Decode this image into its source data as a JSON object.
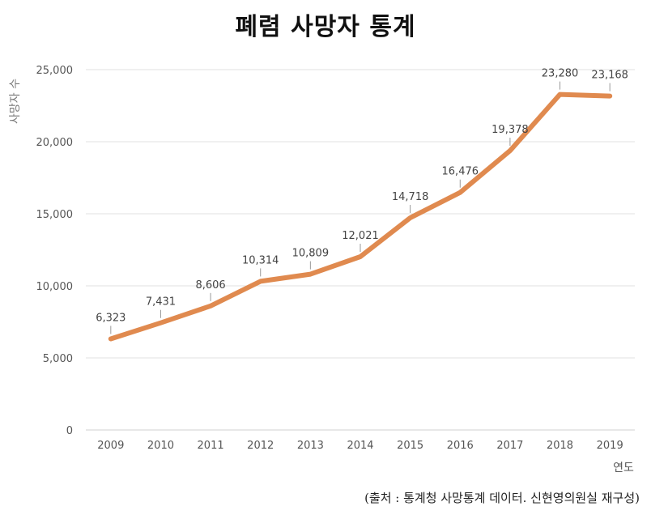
{
  "chart_data": {
    "type": "line",
    "title": "폐렴 사망자 통계",
    "xlabel": "연도",
    "ylabel": "사망자 수",
    "categories": [
      "2009",
      "2010",
      "2011",
      "2012",
      "2013",
      "2014",
      "2015",
      "2016",
      "2017",
      "2018",
      "2019"
    ],
    "series": [
      {
        "values": [
          6323,
          7431,
          8606,
          10314,
          10809,
          12021,
          14718,
          16476,
          19378,
          23280,
          23168
        ]
      }
    ],
    "data_labels": [
      "6,323",
      "7,431",
      "8,606",
      "10,314",
      "10,809",
      "12,021",
      "14,718",
      "16,476",
      "19,378",
      "23,280",
      "23,168"
    ],
    "ylim": [
      0,
      25000
    ],
    "yticks": [
      0,
      5000,
      10000,
      15000,
      20000,
      25000
    ],
    "ytick_labels": [
      "0",
      "5,000",
      "10,000",
      "15,000",
      "20,000",
      "25,000"
    ],
    "grid": true,
    "line_color": "#e08a4f"
  },
  "footer": {
    "source": "(출처 : 통계청 사망통계 데이터. 신현영의원실 재구성)"
  }
}
